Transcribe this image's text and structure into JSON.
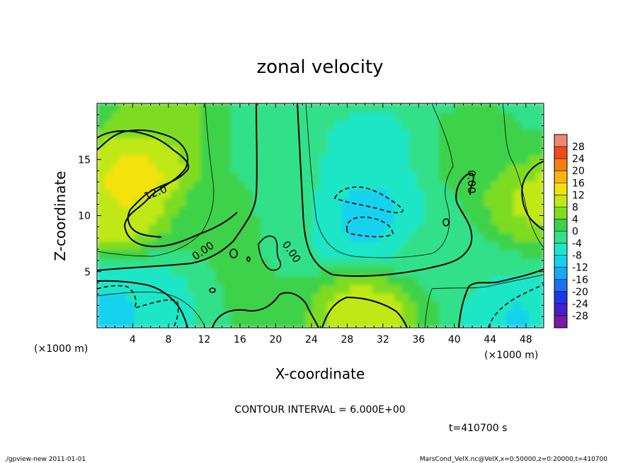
{
  "chart_data": {
    "type": "heatmap",
    "title": "zonal velocity",
    "xlabel": "X-coordinate",
    "ylabel": "Z-coordinate",
    "x_unit": "(×1000 m)",
    "z_unit": "(×1000 m)",
    "xlim": [
      0,
      50
    ],
    "zlim": [
      0,
      20
    ],
    "x_ticks": [
      "4",
      "8",
      "12",
      "16",
      "20",
      "24",
      "28",
      "32",
      "36",
      "40",
      "44",
      "48"
    ],
    "z_ticks": [
      "5",
      "10",
      "15"
    ],
    "colorbar": {
      "ticks": [
        "28",
        "24",
        "20",
        "16",
        "12",
        "8",
        "4",
        "0",
        "-4",
        "-8",
        "-12",
        "-16",
        "-20",
        "-24",
        "-28"
      ],
      "levels": [
        -32,
        -28,
        -24,
        -20,
        -16,
        -12,
        -8,
        -4,
        0,
        4,
        8,
        12,
        16,
        20,
        24,
        28,
        32
      ],
      "colors": [
        "#7a1aa6",
        "#4420c8",
        "#1f35e8",
        "#1f6ef2",
        "#1aa8f4",
        "#12d2ee",
        "#1ce6c6",
        "#32e089",
        "#3cd248",
        "#7ddc20",
        "#bfe818",
        "#f4e20e",
        "#fbb40e",
        "#f67d10",
        "#ef4a18",
        "#f0866f"
      ]
    },
    "contour_labels": [
      "12.0",
      "0.00",
      "0.00",
      "0.00"
    ],
    "field_features": [
      {
        "x": 4.5,
        "z": 14.0,
        "value": 17
      },
      {
        "x": 2.0,
        "z": 10.5,
        "value": 14
      },
      {
        "x": 7.0,
        "z": 18.5,
        "value": 8
      },
      {
        "x": 30.0,
        "z": 11.0,
        "value": -10
      },
      {
        "x": 30.0,
        "z": 9.0,
        "value": -10
      },
      {
        "x": 31.0,
        "z": 16.0,
        "value": -7
      },
      {
        "x": 21.0,
        "z": 11.0,
        "value": -2
      },
      {
        "x": 30.0,
        "z": 1.2,
        "value": 14
      },
      {
        "x": 2.5,
        "z": 1.5,
        "value": -11
      },
      {
        "x": 7.0,
        "z": 2.0,
        "value": -7
      },
      {
        "x": 47.0,
        "z": 1.0,
        "value": -10
      },
      {
        "x": 49.5,
        "z": 11.5,
        "value": 12
      },
      {
        "x": 16.0,
        "z": 3.0,
        "value": 1
      },
      {
        "x": 38.0,
        "z": 6.0,
        "value": -1
      },
      {
        "x": 42.0,
        "z": 16.0,
        "value": 2
      },
      {
        "x": 14.0,
        "z": 10.0,
        "value": 3
      }
    ],
    "base_value": -1
  },
  "notes": {
    "contour_interval": "CONTOUR INTERVAL = 6.000E+00",
    "time": "t=410700 s"
  },
  "footer": {
    "left": "./gpview-new  2011-01-01",
    "right": "MarsCond_VelX.nc@VelX,x=0:50000,z=0:20000,t=410700"
  }
}
